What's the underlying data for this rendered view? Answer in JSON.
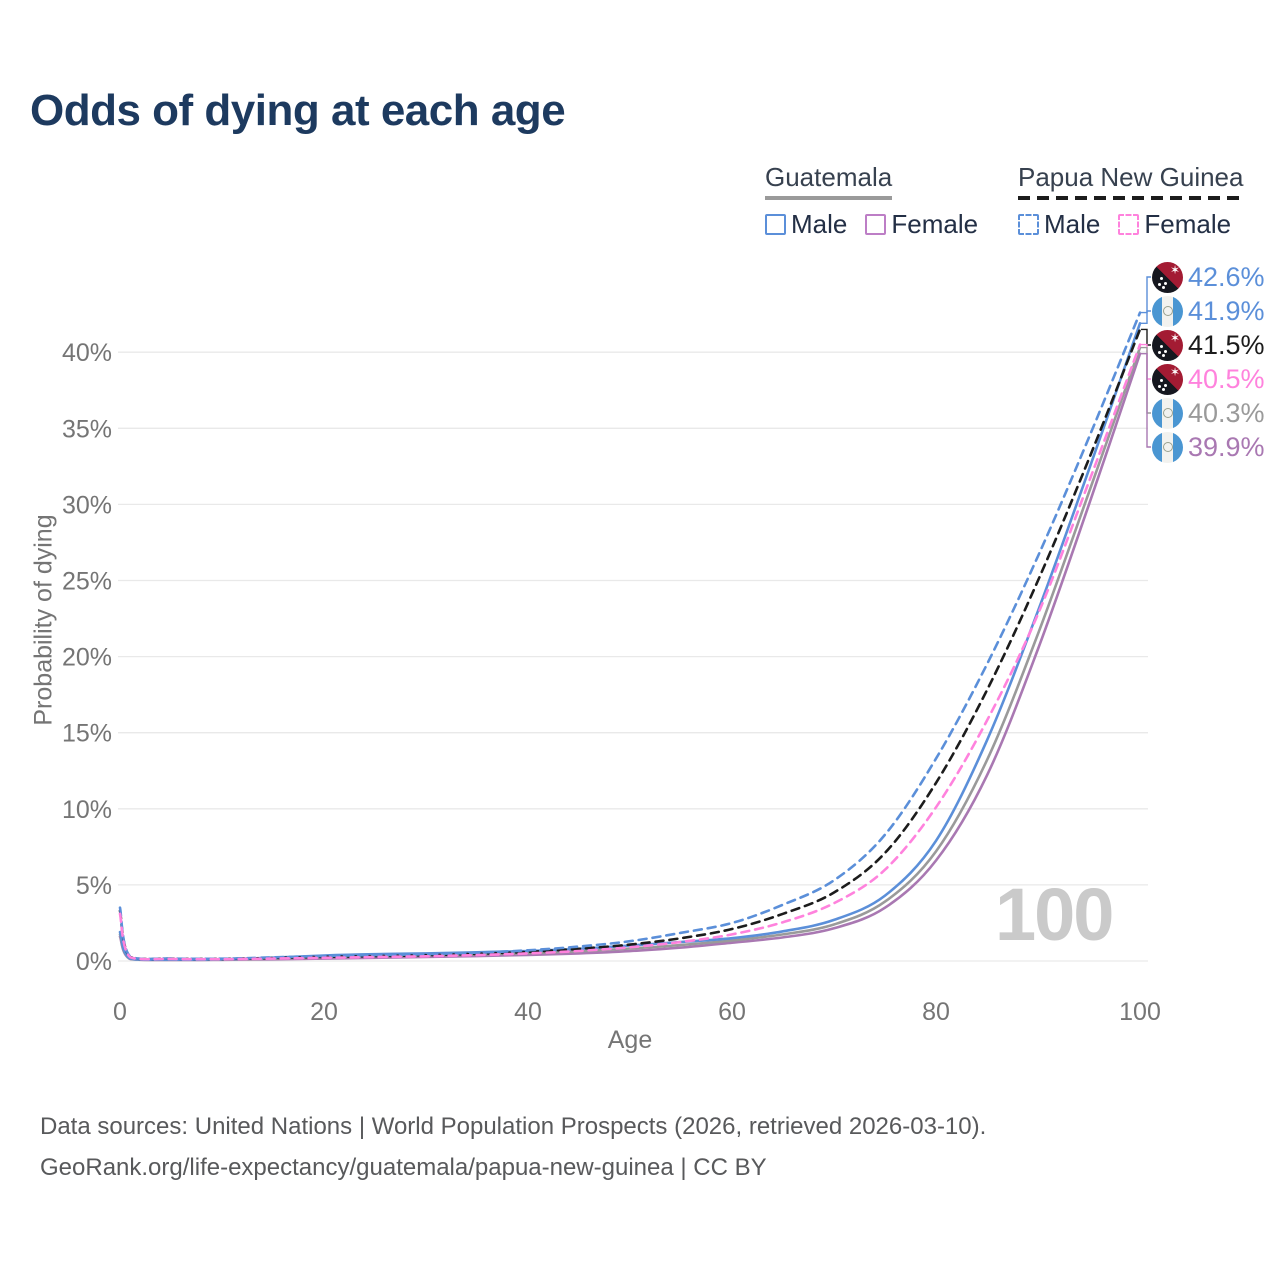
{
  "title": "Odds of dying at each age",
  "watermark": "100",
  "legend": {
    "groups": [
      {
        "label": "Guatemala",
        "line_style": "solid",
        "underline_color": "#9a9a9a",
        "items": [
          {
            "label": "Male",
            "color": "#5b8fd9",
            "dashed": false
          },
          {
            "label": "Female",
            "color": "#bd7ec6",
            "dashed": false
          }
        ]
      },
      {
        "label": "Papua New Guinea",
        "line_style": "dashed",
        "underline_color": "#1c1c1c",
        "items": [
          {
            "label": "Male",
            "color": "#5b8fd9",
            "dashed": true
          },
          {
            "label": "Female",
            "color": "#ff82dd",
            "dashed": true
          }
        ]
      }
    ]
  },
  "chart_data": {
    "type": "line",
    "title": "Odds of dying at each age",
    "xlabel": "Age",
    "ylabel": "Probability of dying",
    "xlim": [
      0,
      100
    ],
    "ylim": [
      0,
      44
    ],
    "grid": "horizontal",
    "x_ticks": [
      0,
      20,
      40,
      60,
      80,
      100
    ],
    "y_ticks": [
      "0%",
      "5%",
      "10%",
      "15%",
      "20%",
      "25%",
      "30%",
      "35%",
      "40%"
    ],
    "x": [
      0,
      1,
      5,
      10,
      15,
      20,
      25,
      30,
      35,
      40,
      45,
      50,
      55,
      60,
      65,
      70,
      75,
      80,
      85,
      90,
      95,
      100
    ],
    "series": [
      {
        "name": "Papua New Guinea — Male",
        "country": "png",
        "color": "#5b8fd9",
        "dashed": true,
        "z": 4,
        "end_label": "42.6%",
        "values": [
          3.5,
          0.28,
          0.16,
          0.15,
          0.24,
          0.33,
          0.39,
          0.45,
          0.55,
          0.7,
          0.95,
          1.3,
          1.85,
          2.5,
          3.7,
          5.3,
          8.3,
          13.3,
          19.5,
          26.6,
          34.4,
          42.6
        ]
      },
      {
        "name": "Guatemala — Male",
        "country": "gt",
        "color": "#5b8fd9",
        "dashed": false,
        "z": 2,
        "end_label": "41.9%",
        "values": [
          1.9,
          0.16,
          0.09,
          0.11,
          0.22,
          0.36,
          0.45,
          0.5,
          0.57,
          0.66,
          0.8,
          1.02,
          1.25,
          1.5,
          1.95,
          2.7,
          4.3,
          7.9,
          14.5,
          23.0,
          32.3,
          41.9
        ]
      },
      {
        "name": "Papua New Guinea — Both sexes",
        "country": "png",
        "color": "#1c1c1c",
        "dashed": true,
        "z": 3,
        "end_label": "41.5%",
        "values": [
          3.3,
          0.26,
          0.15,
          0.14,
          0.2,
          0.27,
          0.32,
          0.38,
          0.47,
          0.6,
          0.8,
          1.08,
          1.5,
          2.1,
          3.1,
          4.5,
          7.1,
          11.7,
          17.8,
          25.0,
          33.0,
          41.5
        ]
      },
      {
        "name": "Papua New Guinea — Female",
        "country": "png",
        "color": "#ff82dd",
        "dashed": true,
        "z": 5,
        "end_label": "40.5%",
        "values": [
          3.1,
          0.24,
          0.13,
          0.12,
          0.16,
          0.21,
          0.26,
          0.31,
          0.39,
          0.5,
          0.66,
          0.9,
          1.25,
          1.75,
          2.55,
          3.8,
          6.0,
          10.1,
          15.8,
          22.8,
          31.5,
          40.5
        ]
      },
      {
        "name": "Guatemala — Both sexes",
        "country": "gt",
        "color": "#9a9a9a",
        "dashed": false,
        "z": 1,
        "end_label": "40.3%",
        "values": [
          1.75,
          0.14,
          0.08,
          0.09,
          0.16,
          0.26,
          0.33,
          0.38,
          0.44,
          0.52,
          0.64,
          0.82,
          1.05,
          1.35,
          1.75,
          2.4,
          3.9,
          7.2,
          13.2,
          21.5,
          30.8,
          40.3
        ]
      },
      {
        "name": "Guatemala — Female",
        "country": "gt",
        "color": "#a978b2",
        "dashed": false,
        "z": 0,
        "end_label": "39.9%",
        "values": [
          1.6,
          0.13,
          0.07,
          0.08,
          0.11,
          0.16,
          0.21,
          0.26,
          0.32,
          0.4,
          0.5,
          0.65,
          0.88,
          1.2,
          1.55,
          2.15,
          3.5,
          6.6,
          12.2,
          20.5,
          30.0,
          39.9
        ]
      }
    ]
  },
  "footer": {
    "line1": "Data sources: United Nations | World Population Prospects (2026, retrieved 2026-03-10).",
    "line2": "GeoRank.org/life-expectancy/guatemala/papua-new-guinea | CC BY"
  }
}
